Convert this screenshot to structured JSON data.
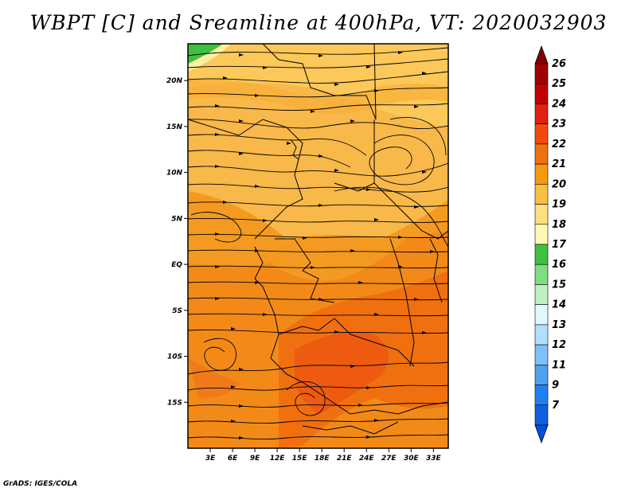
{
  "title": "WBPT [C] and Sreamline at 400hPa, VT: 2020032903",
  "footer": "GrADS: IGES/COLA",
  "map": {
    "lon_range": [
      0,
      35
    ],
    "lat_range": [
      -20,
      24
    ],
    "field_variable": "WBPT",
    "field_unit": "C",
    "level": "400hPa",
    "valid_time": "2020032903"
  },
  "axes": {
    "x_ticks": [
      {
        "label": "3E",
        "value": 3
      },
      {
        "label": "6E",
        "value": 6
      },
      {
        "label": "9E",
        "value": 9
      },
      {
        "label": "12E",
        "value": 12
      },
      {
        "label": "15E",
        "value": 15
      },
      {
        "label": "18E",
        "value": 18
      },
      {
        "label": "21E",
        "value": 21
      },
      {
        "label": "24E",
        "value": 24
      },
      {
        "label": "27E",
        "value": 27
      },
      {
        "label": "30E",
        "value": 30
      },
      {
        "label": "33E",
        "value": 33
      }
    ],
    "y_ticks": [
      {
        "label": "20N",
        "value": 20
      },
      {
        "label": "15N",
        "value": 15
      },
      {
        "label": "10N",
        "value": 10
      },
      {
        "label": "5N",
        "value": 5
      },
      {
        "label": "EQ",
        "value": 0
      },
      {
        "label": "5S",
        "value": -5
      },
      {
        "label": "10S",
        "value": -10
      },
      {
        "label": "15S",
        "value": -15
      }
    ]
  },
  "colorbar": {
    "levels": [
      {
        "label": "26",
        "color": "#a00000"
      },
      {
        "label": "25",
        "color": "#c00000"
      },
      {
        "label": "24",
        "color": "#e02010"
      },
      {
        "label": "23",
        "color": "#f04a10"
      },
      {
        "label": "22",
        "color": "#f07010"
      },
      {
        "label": "21",
        "color": "#f59a0e"
      },
      {
        "label": "20",
        "color": "#f8c040"
      },
      {
        "label": "19",
        "color": "#fce080"
      },
      {
        "label": "18",
        "color": "#fff8b0"
      },
      {
        "label": "17",
        "color": "#40c040"
      },
      {
        "label": "16",
        "color": "#80dd80"
      },
      {
        "label": "15",
        "color": "#c0f0c0"
      },
      {
        "label": "14",
        "color": "#e0f8ff"
      },
      {
        "label": "13",
        "color": "#b0e0ff"
      },
      {
        "label": "12",
        "color": "#80c0f8"
      },
      {
        "label": "11",
        "color": "#50a0f0"
      },
      {
        "label": "9",
        "color": "#2080f0"
      },
      {
        "label": "7",
        "color": "#1060e0"
      }
    ],
    "top_cap_color": "#800000",
    "bottom_cap_color": "#0050e0"
  }
}
